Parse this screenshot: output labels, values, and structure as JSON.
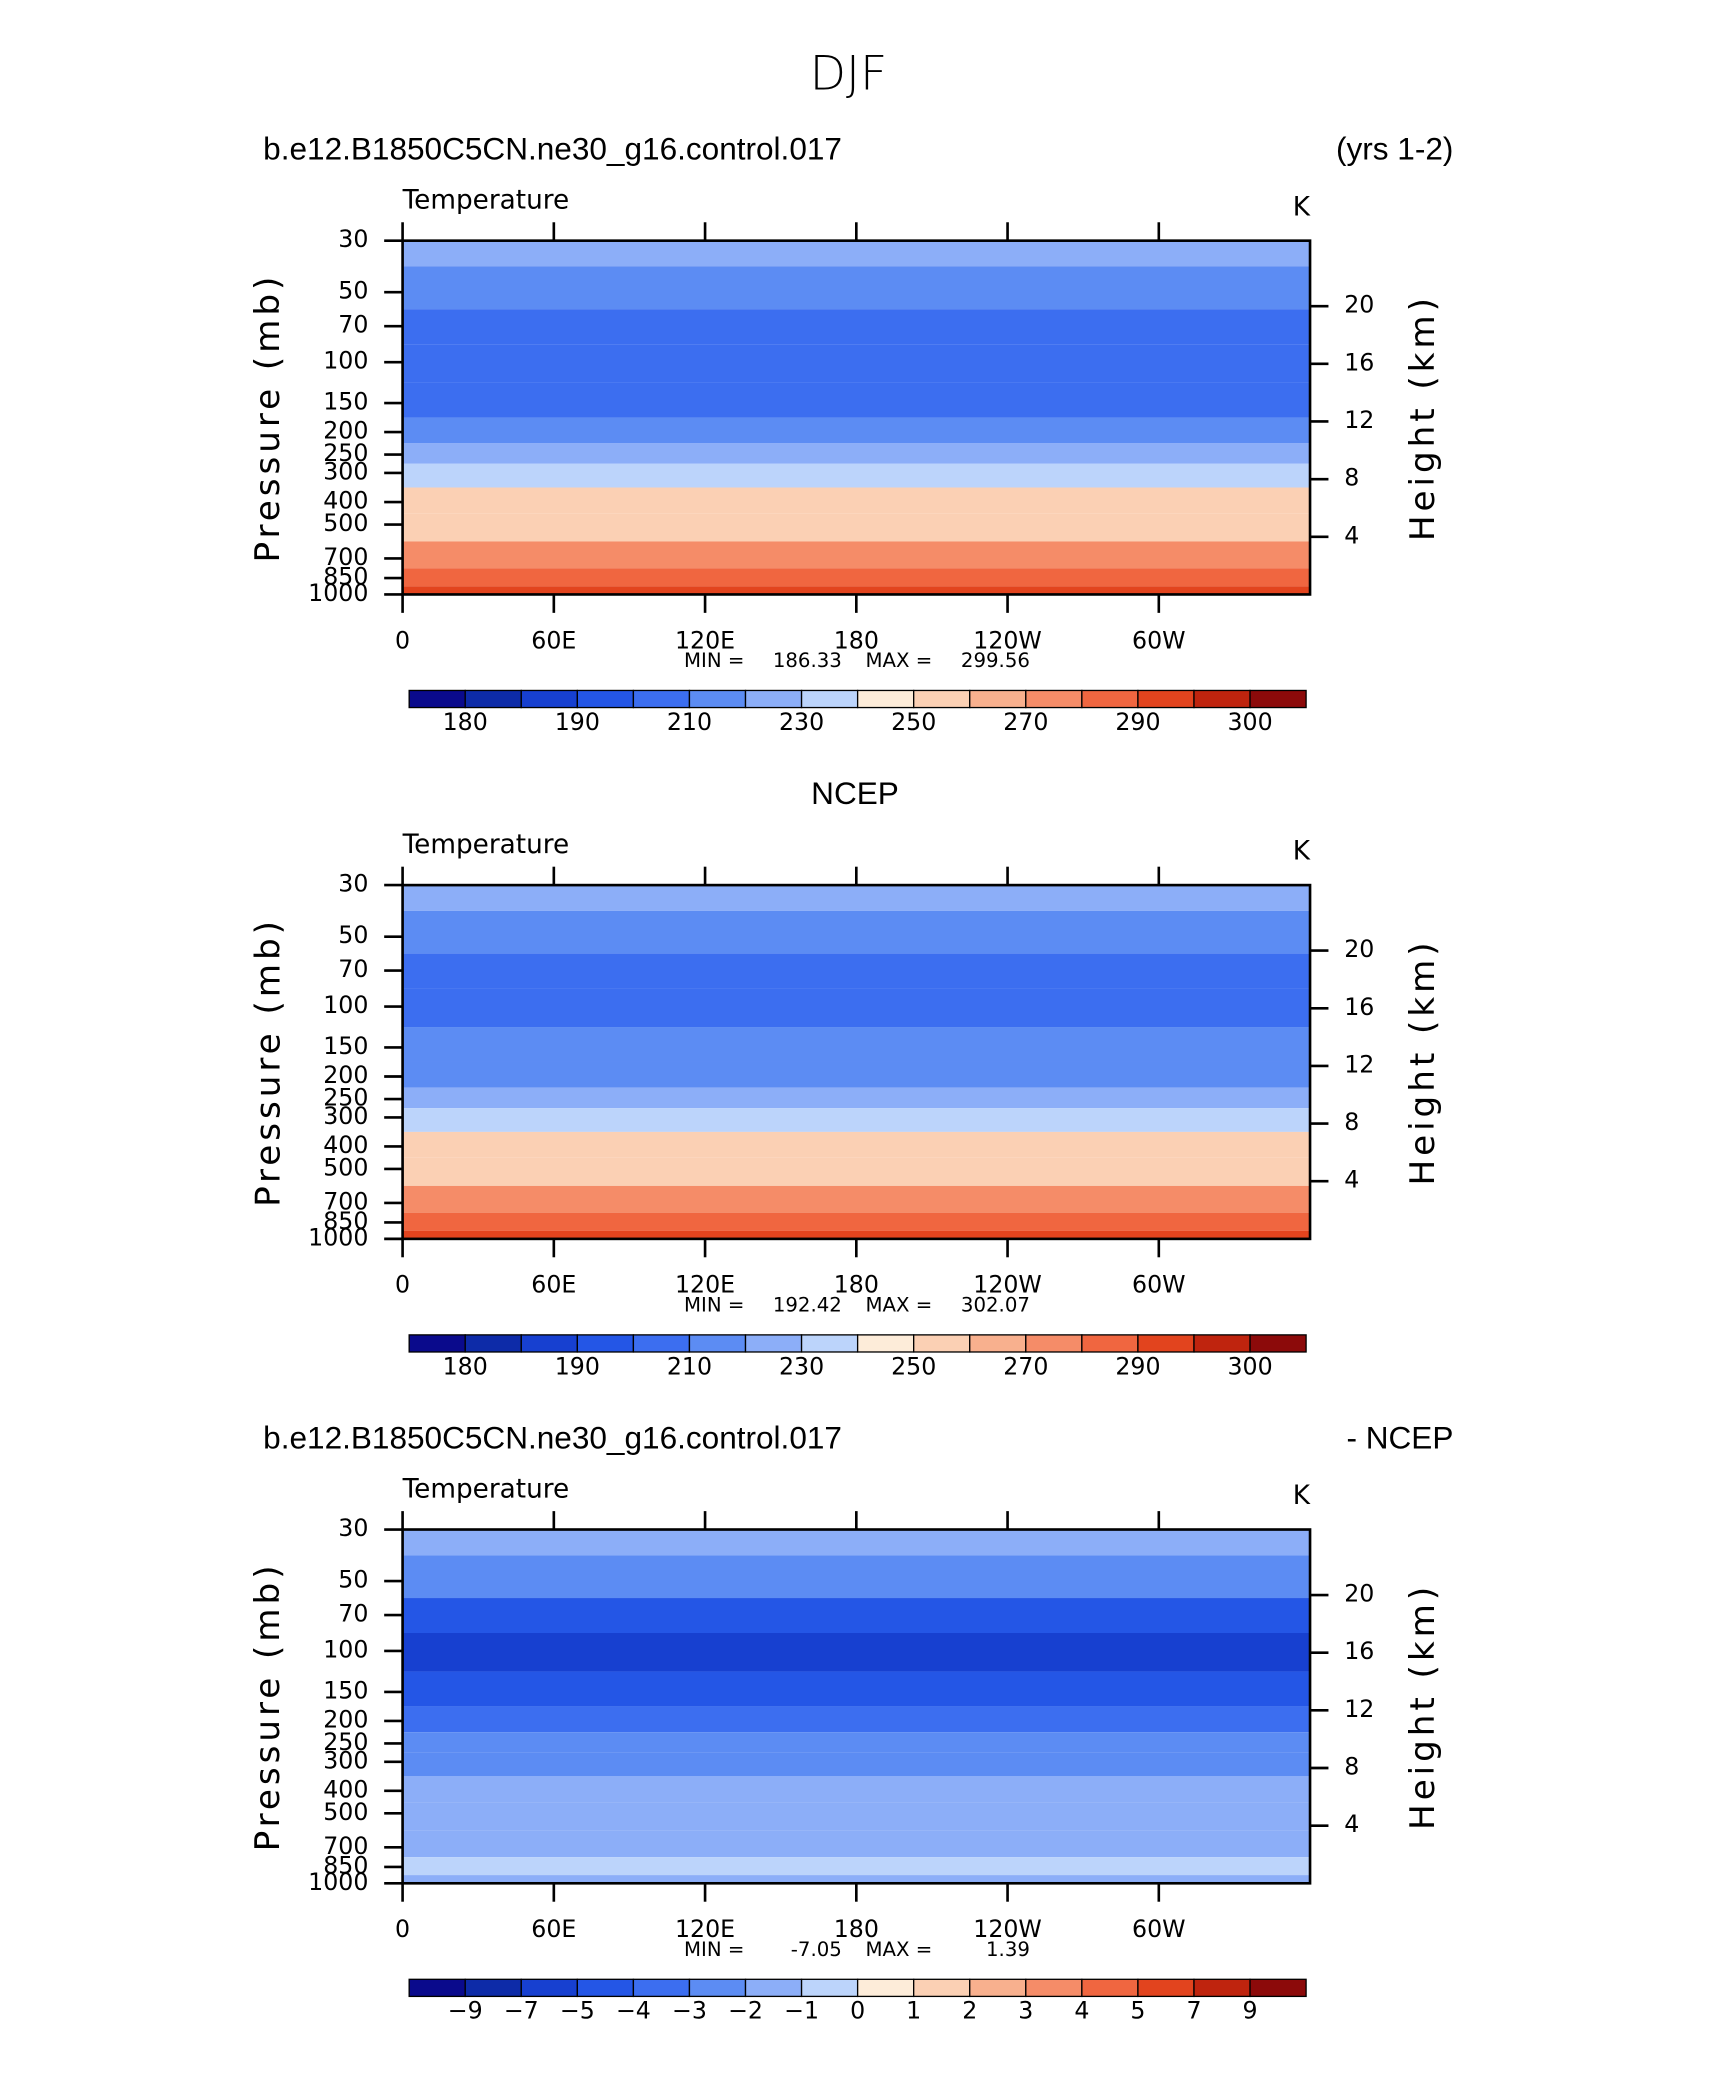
{
  "title": "DJF",
  "chart_data": [
    {
      "type": "contour",
      "left_title": "b.e12.B1850C5CN.ne30_g16.control.017",
      "right_title": "(yrs 1-2)",
      "subtitle": "Temperature",
      "units": "K",
      "ylabel": "Pressure (mb)",
      "y2label": "Height (km)",
      "log_y": true,
      "xlim": [
        0,
        360
      ],
      "xticks": [
        0,
        {
          "value": 60,
          "label": "60E"
        },
        {
          "value": 120,
          "label": "120E"
        },
        180,
        {
          "value": 240,
          "label": "120W"
        },
        {
          "value": 300,
          "label": "60W"
        }
      ],
      "ylim": [
        1000,
        30
      ],
      "yticks": [
        30,
        50,
        70,
        100,
        150,
        200,
        250,
        300,
        400,
        500,
        700,
        850,
        1000
      ],
      "y2ticks": [
        4,
        8,
        12,
        16,
        20
      ],
      "pressure": [
        30,
        50,
        70,
        100,
        150,
        200,
        250,
        300,
        400,
        500,
        700,
        850,
        1000
      ],
      "values": [
        222,
        214,
        204,
        201,
        208,
        217,
        226,
        236,
        250,
        258,
        272,
        282,
        292
      ],
      "min_label": "MIN =",
      "min": 186.33,
      "max_label": "MAX =",
      "max": 299.56,
      "colorbar": {
        "levels": [
          180,
          185,
          190,
          200,
          210,
          220,
          230,
          240,
          250,
          260,
          270,
          280,
          290,
          295,
          300
        ],
        "ticks": [
          180,
          190,
          210,
          230,
          250,
          270,
          290,
          300
        ],
        "colors": [
          "#0a0a8c",
          "#0d2ba8",
          "#1740d0",
          "#2456e6",
          "#3c6ef0",
          "#5c8cf3",
          "#8caef8",
          "#bcd4fb",
          "#fdecd9",
          "#fbd0b4",
          "#f8b08e",
          "#f58c68",
          "#f06640",
          "#e2441e",
          "#bf240e",
          "#8c0a0a"
        ]
      }
    },
    {
      "type": "contour",
      "title": "NCEP",
      "subtitle": "Temperature",
      "units": "K",
      "ylabel": "Pressure (mb)",
      "y2label": "Height (km)",
      "log_y": true,
      "xlim": [
        0,
        360
      ],
      "xticks": [
        0,
        {
          "value": 60,
          "label": "60E"
        },
        {
          "value": 120,
          "label": "120E"
        },
        180,
        {
          "value": 240,
          "label": "120W"
        },
        {
          "value": 300,
          "label": "60W"
        }
      ],
      "ylim": [
        1000,
        30
      ],
      "yticks": [
        30,
        50,
        70,
        100,
        150,
        200,
        250,
        300,
        400,
        500,
        700,
        850,
        1000
      ],
      "y2ticks": [
        4,
        8,
        12,
        16,
        20
      ],
      "pressure": [
        30,
        50,
        70,
        100,
        150,
        200,
        250,
        300,
        400,
        500,
        700,
        850,
        1000
      ],
      "values": [
        224,
        214,
        206,
        204,
        211,
        219,
        228,
        238,
        250,
        258,
        272,
        281,
        291
      ],
      "min_label": "MIN =",
      "min": 192.42,
      "max_label": "MAX =",
      "max": 302.07,
      "colorbar": {
        "levels": [
          180,
          185,
          190,
          200,
          210,
          220,
          230,
          240,
          250,
          260,
          270,
          280,
          290,
          295,
          300
        ],
        "ticks": [
          180,
          190,
          210,
          230,
          250,
          270,
          290,
          300
        ],
        "colors": [
          "#0a0a8c",
          "#0d2ba8",
          "#1740d0",
          "#2456e6",
          "#3c6ef0",
          "#5c8cf3",
          "#8caef8",
          "#bcd4fb",
          "#fdecd9",
          "#fbd0b4",
          "#f8b08e",
          "#f58c68",
          "#f06640",
          "#e2441e",
          "#bf240e",
          "#8c0a0a"
        ]
      }
    },
    {
      "type": "contour",
      "left_title": "b.e12.B1850C5CN.ne30_g16.control.017",
      "right_title": "- NCEP",
      "subtitle": "Temperature",
      "units": "K",
      "ylabel": "Pressure (mb)",
      "y2label": "Height (km)",
      "log_y": true,
      "xlim": [
        0,
        360
      ],
      "xticks": [
        0,
        {
          "value": 60,
          "label": "60E"
        },
        {
          "value": 120,
          "label": "120E"
        },
        180,
        {
          "value": 240,
          "label": "120W"
        },
        {
          "value": 300,
          "label": "60W"
        }
      ],
      "ylim": [
        1000,
        30
      ],
      "yticks": [
        30,
        50,
        70,
        100,
        150,
        200,
        250,
        300,
        400,
        500,
        700,
        850,
        1000
      ],
      "y2ticks": [
        4,
        8,
        12,
        16,
        20
      ],
      "pressure": [
        30,
        50,
        70,
        100,
        150,
        200,
        250,
        300,
        400,
        500,
        700,
        850,
        1000
      ],
      "values": [
        -1.5,
        -2.5,
        -4.2,
        -5.3,
        -5,
        -3.8,
        -3,
        -2.7,
        -2,
        -1.8,
        -1.5,
        -0.8,
        -1.2
      ],
      "min_label": "MIN =",
      "min": -7.05,
      "max_label": "MAX =",
      "max": 1.39,
      "colorbar": {
        "levels": [
          -9,
          -7,
          -5,
          -4,
          -3,
          -2,
          -1,
          0,
          1,
          2,
          3,
          4,
          5,
          7,
          9
        ],
        "ticks": [
          {
            "value": -9,
            "label": "−9"
          },
          {
            "value": -7,
            "label": "−7"
          },
          {
            "value": -5,
            "label": "−5"
          },
          {
            "value": -4,
            "label": "−4"
          },
          {
            "value": -3,
            "label": "−3"
          },
          {
            "value": -2,
            "label": "−2"
          },
          {
            "value": -1,
            "label": "−1"
          },
          0,
          1,
          2,
          3,
          4,
          5,
          7,
          9
        ],
        "colors": [
          "#0a0a8c",
          "#0d2ba8",
          "#1740d0",
          "#2456e6",
          "#3c6ef0",
          "#5c8cf3",
          "#8caef8",
          "#bcd4fb",
          "#fdecd9",
          "#fbd0b4",
          "#f8b08e",
          "#f58c68",
          "#f06640",
          "#e2441e",
          "#bf240e",
          "#8c0a0a"
        ]
      }
    }
  ]
}
